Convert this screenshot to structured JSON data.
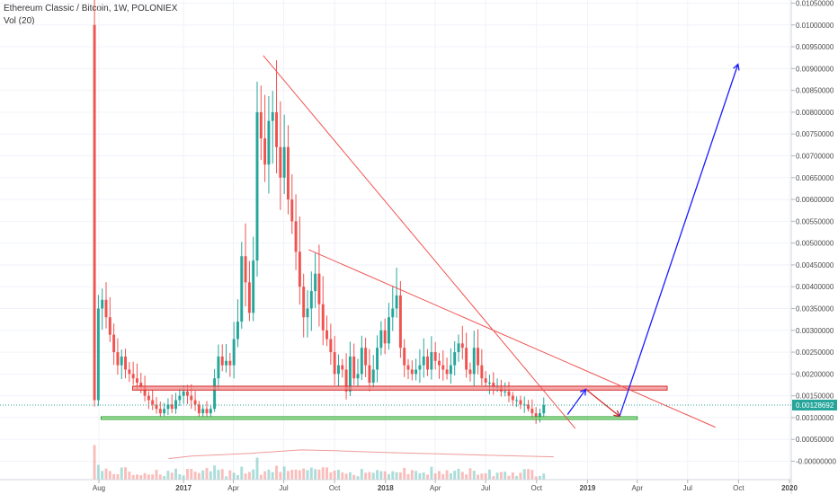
{
  "legend": {
    "title": "Ethereum Classic / Bitcoin, 1W, POLONIEX",
    "volume": "Vol (20)"
  },
  "current_price_label": "0.00128692",
  "colors": {
    "up": "#26a69a",
    "down": "#ef5350",
    "trendline": "#ef5350",
    "projection": "#1a1aff",
    "resistance_zone": "#f28b8b",
    "support_zone": "#8ee08e",
    "price_line": "#26a69a",
    "volume_ma": "#ef9a9a",
    "grid": "#f0f3fa"
  },
  "chart_data": {
    "type": "candlestick",
    "title": "Ethereum Classic / Bitcoin, 1W, POLONIEX",
    "xlabel": "",
    "ylabel": "",
    "ylim": [
      -0.0001,
      0.0105
    ],
    "grid": true,
    "legend_position": "top-left",
    "y_ticks": [
      "0.01050000",
      "0.01000000",
      "0.00950000",
      "0.00900000",
      "0.00850000",
      "0.00800000",
      "0.00750000",
      "0.00700000",
      "0.00650000",
      "0.00600000",
      "0.00550000",
      "0.00500000",
      "0.00450000",
      "0.00400000",
      "0.00350000",
      "0.00300000",
      "0.00250000",
      "0.00200000",
      "0.00150000",
      "0.00100000",
      "0.00050000",
      "-0.00000000"
    ],
    "y_tick_values": [
      0.0105,
      0.01,
      0.0095,
      0.009,
      0.0085,
      0.008,
      0.0075,
      0.007,
      0.0065,
      0.006,
      0.0055,
      0.005,
      0.0045,
      0.004,
      0.0035,
      0.003,
      0.0025,
      0.002,
      0.0015,
      0.001,
      0.0005,
      0
    ],
    "x_ticks": [
      {
        "label": "Aug",
        "date": "2016-08-01",
        "bold": false
      },
      {
        "label": "2017",
        "date": "2017-01-01",
        "bold": true
      },
      {
        "label": "Apr",
        "date": "2017-04-01",
        "bold": false
      },
      {
        "label": "Jul",
        "date": "2017-07-01",
        "bold": false
      },
      {
        "label": "Oct",
        "date": "2017-10-01",
        "bold": false
      },
      {
        "label": "2018",
        "date": "2018-01-01",
        "bold": true
      },
      {
        "label": "Apr",
        "date": "2018-04-01",
        "bold": false
      },
      {
        "label": "Jul",
        "date": "2018-07-01",
        "bold": false
      },
      {
        "label": "Oct",
        "date": "2018-10-01",
        "bold": false
      },
      {
        "label": "2019",
        "date": "2019-01-01",
        "bold": true
      },
      {
        "label": "Apr",
        "date": "2019-04-01",
        "bold": false
      },
      {
        "label": "Jul",
        "date": "2019-07-01",
        "bold": false
      },
      {
        "label": "Oct",
        "date": "2019-10-01",
        "bold": false
      },
      {
        "label": "2020",
        "date": "2020-01-01",
        "bold": true
      }
    ],
    "current_price": 0.00128692,
    "candle_closes": [
      0.0014,
      0.0035,
      0.0037,
      0.0033,
      0.0029,
      0.0025,
      0.0022,
      0.0024,
      0.0021,
      0.002,
      0.0019,
      0.0018,
      0.0017,
      0.0015,
      0.0014,
      0.0013,
      0.0012,
      0.0011,
      0.0012,
      0.0013,
      0.0012,
      0.0014,
      0.0015,
      0.0016,
      0.0015,
      0.0014,
      0.0013,
      0.0011,
      0.0012,
      0.0011,
      0.0012,
      0.0019,
      0.0024,
      0.0022,
      0.0023,
      0.0022,
      0.0028,
      0.0032,
      0.0047,
      0.0041,
      0.0034,
      0.0046,
      0.008,
      0.0074,
      0.0068,
      0.0078,
      0.008,
      0.0072,
      0.0065,
      0.0072,
      0.006,
      0.0055,
      0.0048,
      0.004,
      0.0033,
      0.0035,
      0.0039,
      0.0043,
      0.0036,
      0.003,
      0.0028,
      0.0025,
      0.002,
      0.0022,
      0.0021,
      0.0016,
      0.0024,
      0.0019,
      0.002,
      0.0026,
      0.0022,
      0.0018,
      0.0021,
      0.0026,
      0.003,
      0.0027,
      0.0033,
      0.0035,
      0.0038,
      0.0026,
      0.0022,
      0.0021,
      0.002,
      0.0021,
      0.0022,
      0.0024,
      0.0021,
      0.0025,
      0.0023,
      0.0022,
      0.0021,
      0.002,
      0.0022,
      0.0025,
      0.0027,
      0.0026,
      0.0021,
      0.002,
      0.0026,
      0.0022,
      0.0019,
      0.0018,
      0.0018,
      0.0017,
      0.0017,
      0.0016,
      0.0016,
      0.0015,
      0.0014,
      0.0014,
      0.0013,
      0.0013,
      0.0012,
      0.0011,
      0.001,
      0.0011,
      0.00128692
    ],
    "candle_start_date": "2016-07-24",
    "candle_interval_days": 7,
    "levels": [
      {
        "name": "resistance",
        "low": 0.00163,
        "high": 0.00172,
        "from": "2016-10-01",
        "to": "2019-05-25"
      },
      {
        "name": "support",
        "low": 0.00097,
        "high": 0.00102,
        "from": "2016-08-05",
        "to": "2019-04-01"
      }
    ],
    "trendlines": [
      {
        "from": [
          "2017-05-25",
          0.0093
        ],
        "to": [
          "2018-12-10",
          0.00075
        ]
      },
      {
        "from": [
          "2017-08-15",
          0.00485
        ],
        "to": [
          "2019-08-20",
          0.00078
        ]
      }
    ],
    "projection_path": [
      [
        "2018-11-26",
        0.00107
      ],
      [
        "2018-12-29",
        0.00165
      ],
      [
        "2019-02-28",
        0.00103
      ],
      [
        "2019-09-30",
        0.0091
      ]
    ],
    "volume_ma_points": [
      [
        "2016-12-05",
        6e-05
      ],
      [
        "2017-01-15",
        0.00012
      ],
      [
        "2017-05-01",
        0.00018
      ],
      [
        "2017-08-01",
        0.00026
      ],
      [
        "2017-10-01",
        0.00024
      ],
      [
        "2018-01-01",
        0.0002
      ],
      [
        "2018-05-01",
        0.00016
      ],
      [
        "2018-08-01",
        0.00013
      ],
      [
        "2018-11-01",
        0.0001
      ]
    ]
  }
}
